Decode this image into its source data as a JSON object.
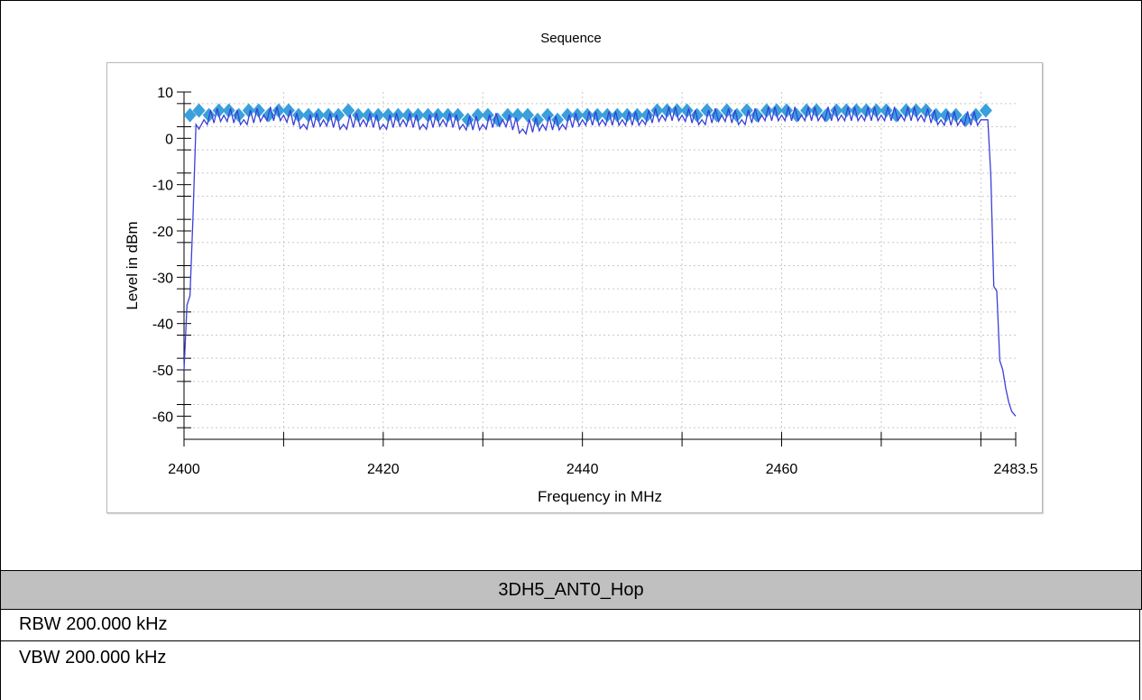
{
  "report": {
    "caption": "3DH5_ANT0_Hop",
    "rbw": "RBW 200.000 kHz",
    "vbw": "VBW 200.000 kHz"
  },
  "chart_data": {
    "type": "line",
    "title": "Sequence",
    "xlabel": "Frequency in MHz",
    "ylabel": "Level in dBm",
    "xlim": [
      2400,
      2483.5
    ],
    "ylim": [
      -65,
      10
    ],
    "x_ticks": [
      "2400",
      "2420",
      "2440",
      "2460",
      "2483.5"
    ],
    "y_ticks": [
      "10",
      "0",
      "-10",
      "-20",
      "-30",
      "-40",
      "-50",
      "-60"
    ],
    "grid": true,
    "colors": {
      "trace": "#3a3fd8",
      "markers": "#3aa0dc"
    },
    "series": [
      {
        "type": "line",
        "x": [
          2400,
          2400.3,
          2400.6,
          2400.9,
          2401.2,
          2401.5,
          2402,
          2404,
          2406,
          2408,
          2410,
          2412,
          2414,
          2416,
          2418,
          2420,
          2422,
          2424,
          2426,
          2428,
          2430,
          2432,
          2434,
          2436,
          2438,
          2440,
          2442,
          2444,
          2446,
          2448,
          2450,
          2452,
          2454,
          2456,
          2458,
          2460,
          2462,
          2464,
          2466,
          2468,
          2470,
          2472,
          2474,
          2476,
          2478,
          2480,
          2480.7,
          2481.0,
          2481.3,
          2481.6,
          2481.9,
          2482.2,
          2482.5,
          2482.8,
          2483.1,
          2483.5
        ],
        "y": [
          -50,
          -36,
          -34,
          -17,
          3,
          2,
          4,
          5,
          4,
          5,
          5,
          3,
          4,
          3,
          4,
          3,
          4,
          3,
          4,
          3,
          3,
          4,
          2,
          3,
          3,
          4,
          4,
          4,
          4,
          5,
          5,
          4,
          5,
          4,
          5,
          5,
          5,
          5,
          5,
          5,
          5,
          5,
          5,
          4,
          4,
          4,
          4,
          -8,
          -32,
          -33,
          -48,
          -50,
          -54,
          -57,
          -59,
          -60
        ]
      },
      {
        "type": "scatter",
        "x": [
          2400.6,
          2401.5,
          2402.5,
          2403.5,
          2404.5,
          2405.5,
          2406.5,
          2407.5,
          2408.5,
          2409.5,
          2410.5,
          2411.5,
          2412.5,
          2413.5,
          2414.5,
          2415.5,
          2416.5,
          2417.5,
          2418.5,
          2419.5,
          2420.5,
          2421.5,
          2422.5,
          2423.5,
          2424.5,
          2425.5,
          2426.5,
          2427.5,
          2428.5,
          2429.5,
          2430.5,
          2431.5,
          2432.5,
          2433.5,
          2434.5,
          2435.5,
          2436.5,
          2437.5,
          2438.5,
          2439.5,
          2440.5,
          2441.5,
          2442.5,
          2443.5,
          2444.5,
          2445.5,
          2446.5,
          2447.5,
          2448.5,
          2449.5,
          2450.5,
          2451.5,
          2452.5,
          2453.5,
          2454.5,
          2455.5,
          2456.5,
          2457.5,
          2458.5,
          2459.5,
          2460.5,
          2461.5,
          2462.5,
          2463.5,
          2464.5,
          2465.5,
          2466.5,
          2467.5,
          2468.5,
          2469.5,
          2470.5,
          2471.5,
          2472.5,
          2473.5,
          2474.5,
          2475.5,
          2476.5,
          2477.5,
          2478.5,
          2479.5,
          2480.5
        ],
        "y": [
          5,
          6,
          5,
          6,
          6,
          5,
          6,
          6,
          5,
          6,
          6,
          5,
          5,
          5,
          5,
          5,
          6,
          5,
          5,
          5,
          5,
          5,
          5,
          5,
          5,
          5,
          5,
          5,
          4,
          5,
          5,
          4,
          5,
          5,
          5,
          4,
          5,
          4,
          5,
          5,
          5,
          5,
          5,
          5,
          5,
          5,
          5,
          6,
          6,
          6,
          6,
          5,
          6,
          5,
          6,
          5,
          6,
          5,
          6,
          6,
          6,
          5,
          6,
          6,
          5,
          6,
          6,
          6,
          6,
          6,
          6,
          5,
          6,
          6,
          6,
          5,
          5,
          5,
          4,
          5,
          6
        ]
      }
    ]
  }
}
